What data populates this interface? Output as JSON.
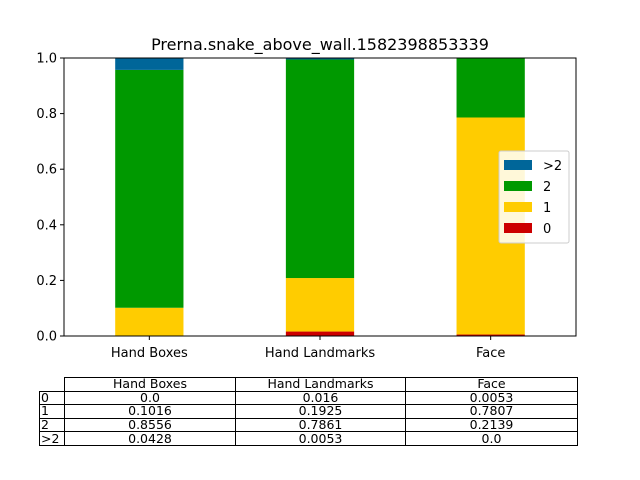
{
  "chart_data": {
    "type": "stacked-bar",
    "title": "Prerna.snake_above_wall.1582398853339",
    "categories": [
      "Hand Boxes",
      "Hand Landmarks",
      "Face"
    ],
    "series": [
      {
        "name": "0",
        "color": "#cc0000",
        "values": [
          0.0,
          0.016,
          0.0053
        ]
      },
      {
        "name": "1",
        "color": "#ffcc00",
        "values": [
          0.1016,
          0.1925,
          0.7807
        ]
      },
      {
        "name": "2",
        "color": "#009900",
        "values": [
          0.8556,
          0.7861,
          0.2139
        ]
      },
      {
        "name": ">2",
        "color": "#006699",
        "values": [
          0.0428,
          0.0053,
          0.0
        ]
      }
    ],
    "legend_order": [
      ">2",
      "2",
      "1",
      "0"
    ],
    "legend_position": "center-right",
    "ylim": [
      0,
      1
    ],
    "yticks": [
      "0.0",
      "0.2",
      "0.4",
      "0.6",
      "0.8",
      "1.0"
    ],
    "xlabel": "",
    "ylabel": "",
    "grid": false
  },
  "table": {
    "col_labels": [
      "Hand Boxes",
      "Hand Landmarks",
      "Face"
    ],
    "rows": [
      {
        "label": "0",
        "cells": [
          "0.0",
          "0.016",
          "0.0053"
        ]
      },
      {
        "label": "1",
        "cells": [
          "0.1016",
          "0.1925",
          "0.7807"
        ]
      },
      {
        "label": "2",
        "cells": [
          "0.8556",
          "0.7861",
          "0.2139"
        ]
      },
      {
        "label": ">2",
        "cells": [
          "0.0428",
          "0.0053",
          "0.0"
        ]
      }
    ]
  }
}
